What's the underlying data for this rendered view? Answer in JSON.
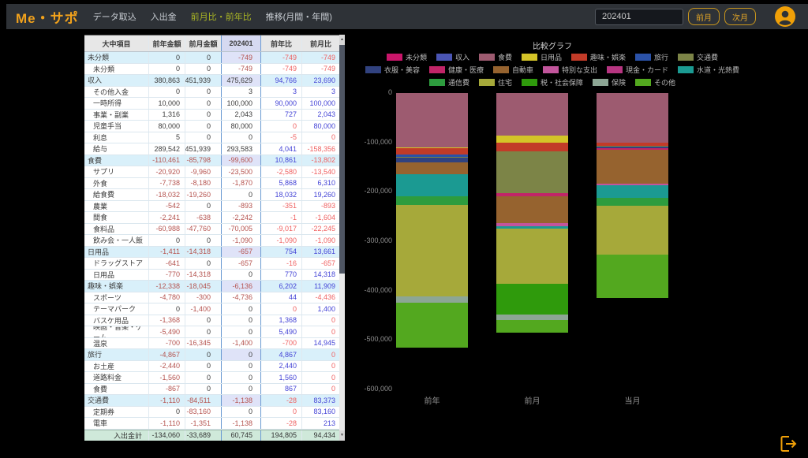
{
  "header": {
    "logo": "Me・サポ",
    "nav": [
      {
        "id": "data-import",
        "label": "データ取込",
        "active": false
      },
      {
        "id": "transactions",
        "label": "入出金",
        "active": false
      },
      {
        "id": "comparison",
        "label": "前月比・前年比",
        "active": true
      },
      {
        "id": "trend",
        "label": "推移(月間・年間)",
        "active": false
      }
    ],
    "month_input": "202401",
    "prev_button": "前月",
    "next_button": "次月"
  },
  "table": {
    "columns": [
      "大中項目",
      "前年金額",
      "前月金額",
      "202401",
      "前年比",
      "前月比"
    ],
    "rows": [
      {
        "name": "未分類",
        "type": "cat",
        "v": [
          "0",
          "0",
          "-749",
          "-749",
          "-749"
        ]
      },
      {
        "name": "未分類",
        "type": "sub",
        "v": [
          "0",
          "0",
          "-749",
          "-749",
          "-749"
        ]
      },
      {
        "name": "収入",
        "type": "cat",
        "v": [
          "380,863",
          "451,939",
          "475,629",
          "94,766",
          "23,690"
        ]
      },
      {
        "name": "その他入金",
        "type": "sub",
        "v": [
          "0",
          "0",
          "3",
          "3",
          "3"
        ]
      },
      {
        "name": "一時所得",
        "type": "sub",
        "v": [
          "10,000",
          "0",
          "100,000",
          "90,000",
          "100,000"
        ]
      },
      {
        "name": "事業・副業",
        "type": "sub",
        "v": [
          "1,316",
          "0",
          "2,043",
          "727",
          "2,043"
        ]
      },
      {
        "name": "児童手当",
        "type": "sub",
        "v": [
          "80,000",
          "0",
          "80,000",
          "0",
          "80,000"
        ]
      },
      {
        "name": "利息",
        "type": "sub",
        "v": [
          "5",
          "0",
          "0",
          "-5",
          "0"
        ]
      },
      {
        "name": "給与",
        "type": "sub",
        "v": [
          "289,542",
          "451,939",
          "293,583",
          "4,041",
          "-158,356"
        ]
      },
      {
        "name": "食費",
        "type": "cat",
        "v": [
          "-110,461",
          "-85,798",
          "-99,600",
          "10,861",
          "-13,802"
        ]
      },
      {
        "name": "サプリ",
        "type": "sub",
        "v": [
          "-20,920",
          "-9,960",
          "-23,500",
          "-2,580",
          "-13,540"
        ]
      },
      {
        "name": "外食",
        "type": "sub",
        "v": [
          "-7,738",
          "-8,180",
          "-1,870",
          "5,868",
          "6,310"
        ]
      },
      {
        "name": "給食費",
        "type": "sub",
        "v": [
          "-18,032",
          "-19,260",
          "0",
          "18,032",
          "19,260"
        ]
      },
      {
        "name": "農業",
        "type": "sub",
        "v": [
          "-542",
          "0",
          "-893",
          "-351",
          "-893"
        ]
      },
      {
        "name": "間食",
        "type": "sub",
        "v": [
          "-2,241",
          "-638",
          "-2,242",
          "-1",
          "-1,604"
        ]
      },
      {
        "name": "食料品",
        "type": "sub",
        "v": [
          "-60,988",
          "-47,760",
          "-70,005",
          "-9,017",
          "-22,245"
        ]
      },
      {
        "name": "飲み会・一人飯",
        "type": "sub",
        "v": [
          "0",
          "0",
          "-1,090",
          "-1,090",
          "-1,090"
        ]
      },
      {
        "name": "日用品",
        "type": "cat",
        "v": [
          "-1,411",
          "-14,318",
          "-657",
          "754",
          "13,661"
        ]
      },
      {
        "name": "ドラッグストア",
        "type": "sub",
        "v": [
          "-641",
          "0",
          "-657",
          "-16",
          "-657"
        ]
      },
      {
        "name": "日用品",
        "type": "sub",
        "v": [
          "-770",
          "-14,318",
          "0",
          "770",
          "14,318"
        ]
      },
      {
        "name": "趣味・娯楽",
        "type": "cat",
        "v": [
          "-12,338",
          "-18,045",
          "-6,136",
          "6,202",
          "11,909"
        ]
      },
      {
        "name": "スポーツ",
        "type": "sub",
        "v": [
          "-4,780",
          "-300",
          "-4,736",
          "44",
          "-4,436"
        ]
      },
      {
        "name": "テーマパーク",
        "type": "sub",
        "v": [
          "0",
          "-1,400",
          "0",
          "0",
          "1,400"
        ]
      },
      {
        "name": "バスケ用品",
        "type": "sub",
        "v": [
          "-1,368",
          "0",
          "0",
          "1,368",
          "0"
        ]
      },
      {
        "name": "映画・音楽・ゲーム",
        "type": "sub",
        "v": [
          "-5,490",
          "0",
          "0",
          "5,490",
          "0"
        ]
      },
      {
        "name": "温泉",
        "type": "sub",
        "v": [
          "-700",
          "-16,345",
          "-1,400",
          "-700",
          "14,945"
        ]
      },
      {
        "name": "旅行",
        "type": "cat",
        "v": [
          "-4,867",
          "0",
          "0",
          "4,867",
          "0"
        ]
      },
      {
        "name": "お土産",
        "type": "sub",
        "v": [
          "-2,440",
          "0",
          "0",
          "2,440",
          "0"
        ]
      },
      {
        "name": "道路料金",
        "type": "sub",
        "v": [
          "-1,560",
          "0",
          "0",
          "1,560",
          "0"
        ]
      },
      {
        "name": "食費",
        "type": "sub",
        "v": [
          "-867",
          "0",
          "0",
          "867",
          "0"
        ]
      },
      {
        "name": "交通費",
        "type": "cat",
        "v": [
          "-1,110",
          "-84,511",
          "-1,138",
          "-28",
          "83,373"
        ]
      },
      {
        "name": "定期券",
        "type": "sub",
        "v": [
          "0",
          "-83,160",
          "0",
          "0",
          "83,160"
        ]
      },
      {
        "name": "電車",
        "type": "sub",
        "v": [
          "-1,110",
          "-1,351",
          "-1,138",
          "-28",
          "213"
        ]
      }
    ],
    "total": {
      "name": "入出金計",
      "v": [
        "-134,060",
        "-33,689",
        "60,745",
        "194,805",
        "94,434"
      ]
    }
  },
  "chart_data": {
    "type": "bar",
    "stacked": true,
    "title": "比較グラフ",
    "categories": [
      "前年",
      "前月",
      "当月"
    ],
    "ylim": [
      -600000,
      0
    ],
    "yticks": [
      "0",
      "-100,000",
      "-200,000",
      "-300,000",
      "-400,000",
      "-500,000",
      "-600,000"
    ],
    "grid": false,
    "legend_position": "top",
    "legend_rows": [
      [
        "未分類",
        "収入",
        "食費",
        "日用品",
        "趣味・娯楽",
        "旅行",
        "交通費"
      ],
      [
        "衣服・美容",
        "健康・医療",
        "自動車",
        "特別な支出",
        "現金・カード",
        "水道・光熱費"
      ],
      [
        "通信費",
        "住宅",
        "税・社会保障",
        "保険",
        "その他"
      ]
    ],
    "colors": {
      "未分類": "#c9166a",
      "収入": "#4a55b4",
      "食費": "#9d5b70",
      "日用品": "#d4c428",
      "趣味・娯楽": "#c23b28",
      "旅行": "#2b52a8",
      "交通費": "#7c8447",
      "衣服・美容": "#31427f",
      "健康・医療": "#c12568",
      "自動車": "#96632f",
      "特別な支出": "#c2559c",
      "現金・カード": "#b73581",
      "水道・光熱費": "#1b9a92",
      "通信費": "#2d9c3e",
      "住宅": "#a6a93a",
      "税・社会保障": "#2f9a0c",
      "保険": "#8da695",
      "その他": "#53a81f"
    },
    "series": [
      {
        "name": "未分類",
        "values": [
          0,
          0,
          -749
        ]
      },
      {
        "name": "食費",
        "values": [
          -110461,
          -85798,
          -99600
        ]
      },
      {
        "name": "日用品",
        "values": [
          -1411,
          -14318,
          -657
        ]
      },
      {
        "name": "趣味・娯楽",
        "values": [
          -12338,
          -18045,
          -6136
        ]
      },
      {
        "name": "旅行",
        "values": [
          -4867,
          0,
          0
        ]
      },
      {
        "name": "交通費",
        "values": [
          -1110,
          -84511,
          -1138
        ]
      },
      {
        "name": "衣服・美容",
        "values": [
          -10000,
          0,
          -3200
        ]
      },
      {
        "name": "健康・医療",
        "values": [
          0,
          -6400,
          -3700
        ]
      },
      {
        "name": "自動車",
        "values": [
          -24000,
          -53700,
          -68000
        ]
      },
      {
        "name": "特別な支出",
        "values": [
          0,
          -7400,
          -4300
        ]
      },
      {
        "name": "現金・カード",
        "values": [
          0,
          0,
          0
        ]
      },
      {
        "name": "水道・光熱費",
        "values": [
          -45000,
          -4800,
          -25000
        ]
      },
      {
        "name": "通信費",
        "values": [
          -17500,
          0,
          -16000
        ]
      },
      {
        "name": "住宅",
        "values": [
          -185000,
          -111600,
          -98400
        ]
      },
      {
        "name": "税・社会保障",
        "values": [
          0,
          -62200,
          0
        ]
      },
      {
        "name": "保険",
        "values": [
          -12736,
          -10600,
          0
        ]
      },
      {
        "name": "その他",
        "values": [
          -90500,
          -26256,
          -88004
        ]
      }
    ],
    "totals": [
      -514923,
      -485628,
      -414884
    ]
  }
}
